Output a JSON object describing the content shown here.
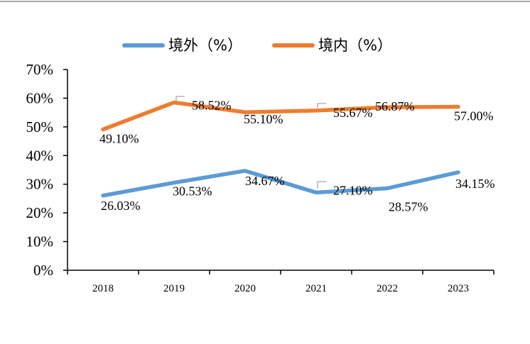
{
  "chart_data": {
    "type": "line",
    "title": "",
    "xlabel": "",
    "ylabel": "",
    "categories": [
      "2018",
      "2019",
      "2020",
      "2021",
      "2022",
      "2023"
    ],
    "ylim": [
      0,
      70
    ],
    "yticks": [
      "0%",
      "10%",
      "20%",
      "30%",
      "40%",
      "50%",
      "60%",
      "70%"
    ],
    "legend_position": "top",
    "grid": false,
    "series": [
      {
        "name": "境外（%）",
        "color": "#5B9BD5",
        "values": [
          26.03,
          30.53,
          34.67,
          27.1,
          28.57,
          34.15
        ],
        "labels": [
          "26.03%",
          "30.53%",
          "34.67%",
          "27.10%",
          "28.57%",
          "34.15%"
        ]
      },
      {
        "name": "境内（%）",
        "color": "#ED7D31",
        "values": [
          49.1,
          58.52,
          55.1,
          55.67,
          56.87,
          57.0
        ],
        "labels": [
          "49.10%",
          "58.52%",
          "55.10%",
          "55.67%",
          "56.87%",
          "57.00%"
        ]
      }
    ]
  }
}
